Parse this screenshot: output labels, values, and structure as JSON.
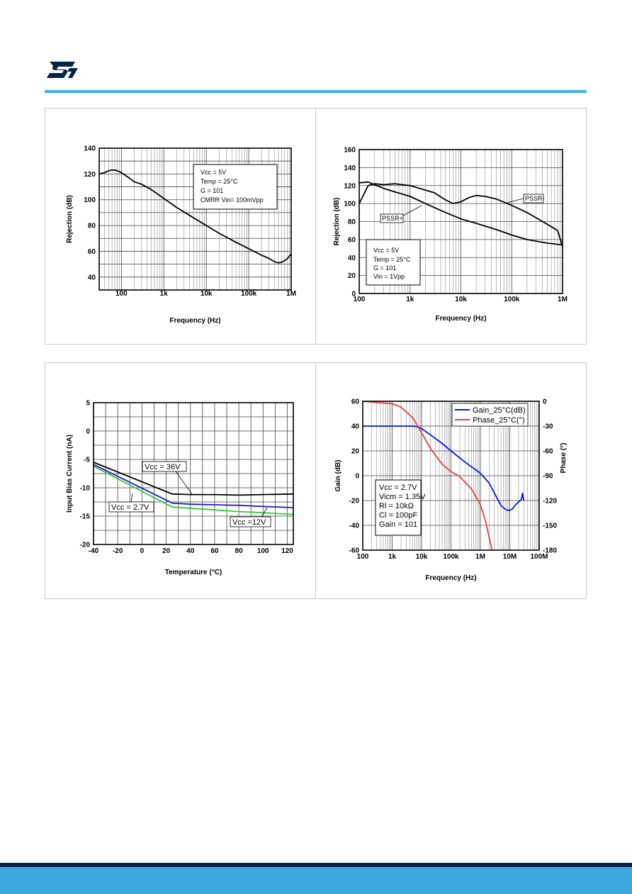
{
  "brand": {
    "accent_color": "#3cb4e6",
    "footer_dark": "#03234b",
    "footer_color": "#3ba9dc",
    "logo": "st-logo"
  },
  "chart_data": [
    {
      "id": "cmrr",
      "type": "line",
      "xscale": "log",
      "xlim": [
        30,
        1000000
      ],
      "ylim": [
        30,
        140
      ],
      "xticks": [
        100,
        1000,
        10000,
        100000,
        1000000
      ],
      "xtick_labels": [
        "100",
        "1k",
        "10k",
        "100k",
        "1M"
      ],
      "yticks": [
        40,
        60,
        80,
        100,
        120,
        140
      ],
      "ytick_labels": [
        "40",
        "60",
        "80",
        "100",
        "120",
        "140"
      ],
      "xlabel": "Frequency (Hz)",
      "ylabel": "Rejection (dB)",
      "grid": true,
      "annotation": [
        "Vcc = 5V",
        "Temp = 25°C",
        "G = 101",
        "CMRR Vin= 100mVpp"
      ],
      "series": [
        {
          "color": "#000000",
          "x": [
            30,
            40,
            50,
            60,
            70,
            80,
            100,
            150,
            200,
            300,
            500,
            1000,
            2000,
            5000,
            10000,
            20000,
            50000,
            100000,
            200000,
            300000,
            400000,
            500000,
            600000,
            800000,
            1000000
          ],
          "y": [
            120,
            121,
            122.5,
            123,
            123,
            122.5,
            121,
            117,
            114,
            112,
            108,
            101,
            94,
            86,
            80,
            74,
            67,
            62,
            57,
            54.5,
            52,
            51,
            51.5,
            54,
            58
          ]
        }
      ]
    },
    {
      "id": "psrr",
      "type": "line",
      "xscale": "log",
      "xlim": [
        100,
        1000000
      ],
      "ylim": [
        0,
        160
      ],
      "xticks": [
        100,
        1000,
        10000,
        100000,
        1000000
      ],
      "xtick_labels": [
        "100",
        "1k",
        "10k",
        "100k",
        "1M"
      ],
      "yticks": [
        0,
        20,
        40,
        60,
        80,
        100,
        120,
        140,
        160
      ],
      "ytick_labels": [
        "0",
        "20",
        "40",
        "60",
        "80",
        "100",
        "120",
        "140",
        "160"
      ],
      "xlabel": "Frequency (Hz)",
      "ylabel": "Rejection (dB)",
      "grid": true,
      "annotation": [
        "Vcc = 5V",
        "Temp = 25°C",
        "G = 101",
        "Vin = 1Vpp"
      ],
      "labels": [
        "PSSR-",
        "PSSR+"
      ],
      "series": [
        {
          "name": "PSSR-",
          "color": "#000000",
          "x": [
            100,
            150,
            200,
            300,
            500,
            700,
            1000,
            2000,
            3000,
            5000,
            7000,
            10000,
            15000,
            20000,
            30000,
            50000,
            100000,
            200000,
            500000,
            800000,
            1000000
          ],
          "y": [
            100,
            120,
            122,
            121,
            122,
            121,
            120,
            115,
            112,
            104,
            100,
            102,
            107,
            109,
            108,
            105,
            98,
            90,
            77,
            70,
            52
          ]
        },
        {
          "name": "PSSR+",
          "color": "#000000",
          "x": [
            100,
            150,
            200,
            300,
            500,
            1000,
            2000,
            5000,
            10000,
            20000,
            50000,
            100000,
            200000,
            500000,
            1000000
          ],
          "y": [
            123,
            124,
            121,
            117,
            113,
            108,
            100,
            90,
            83,
            78,
            71,
            65,
            60,
            56,
            54
          ]
        }
      ]
    },
    {
      "id": "input-bias",
      "type": "line",
      "xlim": [
        -40,
        125
      ],
      "ylim": [
        -20,
        5
      ],
      "xticks": [
        -40,
        -20,
        0,
        20,
        40,
        60,
        80,
        100,
        120
      ],
      "xtick_labels": [
        "-40",
        "-20",
        "0",
        "20",
        "40",
        "60",
        "80",
        "100",
        "120"
      ],
      "yticks": [
        -20,
        -15,
        -10,
        -5,
        0,
        5
      ],
      "ytick_labels": [
        "-20",
        "-15",
        "-10",
        "-5",
        "0",
        "5"
      ],
      "xlabel": "Temperature (°C)",
      "ylabel": "Input Bias Current (nA)",
      "grid": true,
      "labels": [
        "Vcc = 36V",
        "Vcc = 2.7V",
        "Vcc =12V"
      ],
      "series": [
        {
          "name": "Vcc = 36V",
          "color": "#000000",
          "x": [
            -40,
            25,
            40,
            60,
            80,
            100,
            125
          ],
          "y": [
            -5.5,
            -11.1,
            -11.2,
            -11.2,
            -11.3,
            -11.2,
            -11.1
          ]
        },
        {
          "name": "Vcc = 2.7V",
          "color": "#1a1acc",
          "x": [
            -40,
            25,
            40,
            60,
            80,
            100,
            125
          ],
          "y": [
            -5.9,
            -12.7,
            -12.9,
            -13.0,
            -13.1,
            -13.3,
            -13.5
          ]
        },
        {
          "name": "Vcc =12V",
          "color": "#33cc33",
          "x": [
            -40,
            25,
            40,
            60,
            80,
            100,
            125
          ],
          "y": [
            -6.2,
            -13.4,
            -13.6,
            -13.9,
            -14.2,
            -14.4,
            -14.7
          ]
        }
      ]
    },
    {
      "id": "gain-phase",
      "type": "line",
      "xscale": "log",
      "xlim": [
        100,
        100000000
      ],
      "ylim": [
        -60,
        60
      ],
      "y2lim": [
        -180,
        0
      ],
      "xticks": [
        100,
        1000,
        10000,
        100000,
        1000000,
        10000000,
        100000000
      ],
      "xtick_labels": [
        "100",
        "1k",
        "10k",
        "100k",
        "1M",
        "10M",
        "100M"
      ],
      "yticks": [
        -60,
        -40,
        -20,
        0,
        20,
        40,
        60
      ],
      "ytick_labels": [
        "-60",
        "-40",
        "-20",
        "0",
        "20",
        "40",
        "60"
      ],
      "y2ticks": [
        -180,
        -150,
        -120,
        -90,
        -60,
        -30,
        0
      ],
      "y2tick_labels": [
        "-180",
        "-150",
        "-120",
        "-90",
        "-60",
        "-30",
        "0"
      ],
      "xlabel": "Frequency (Hz)",
      "ylabel": "Gain (dB)",
      "y2label": "Phase (°)",
      "grid": true,
      "legend": "top-right",
      "annotation": [
        "Vcc = 2.7V",
        "Vicm = 1.35V",
        "Rl = 10kΩ",
        "Cl = 100pF",
        "Gain = 101"
      ],
      "series": [
        {
          "name": "Gain_25°C(dB)",
          "color": "#0018e0",
          "axis": "left",
          "x": [
            100,
            1000,
            5000,
            7000,
            10000,
            20000,
            50000,
            100000,
            300000,
            1000000,
            2000000,
            3000000,
            5000000,
            7000000,
            9000000,
            12000000,
            15000000,
            20000000,
            25000000,
            27000000,
            30000000
          ],
          "y": [
            40,
            40,
            40,
            39.5,
            38,
            33,
            26,
            20,
            11,
            2,
            -6,
            -14,
            -24,
            -27,
            -28,
            -27,
            -24,
            -21,
            -19,
            -14,
            -20
          ]
        },
        {
          "name": "Phase_25°C(°)",
          "color": "#e84040",
          "axis": "right",
          "x": [
            100,
            1000,
            2000,
            5000,
            10000,
            20000,
            50000,
            100000,
            200000,
            500000,
            1000000,
            1500000,
            2000000,
            2500000
          ],
          "y": [
            0,
            -3,
            -7,
            -20,
            -38,
            -57,
            -76,
            -85,
            -91,
            -106,
            -125,
            -145,
            -165,
            -180
          ]
        }
      ]
    }
  ]
}
